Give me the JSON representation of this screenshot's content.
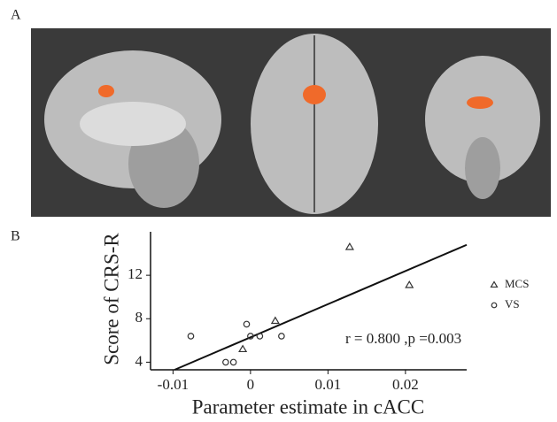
{
  "panel_labels": [
    "A",
    "B"
  ],
  "chart_data": {
    "type": "scatter",
    "xlabel": "Parameter estimate in cACC",
    "ylabel": "Score of CRS-R",
    "annotation": "r = 0.800 ,p =0.003",
    "xlim": [
      -0.0129,
      0.0279
    ],
    "ylim": [
      3.3,
      16
    ],
    "xticks": [
      -0.01,
      0,
      0.01,
      0.02
    ],
    "yticks": [
      4,
      8,
      12
    ],
    "series": [
      {
        "name": "MCS",
        "marker": "triangle",
        "color": "#333333",
        "x": [
          0.0128,
          0.0205,
          0.0032,
          -0.001
        ],
        "values": [
          14.6,
          11.1,
          7.8,
          5.2
        ]
      },
      {
        "name": "VS",
        "marker": "circle",
        "color": "#333333",
        "x": [
          -0.0077,
          -0.0005,
          0,
          0.0012,
          0.004,
          -0.0032,
          -0.0022
        ],
        "values": [
          6.4,
          7.5,
          6.4,
          6.4,
          6.4,
          4,
          4
        ]
      }
    ],
    "fit_line": {
      "x": [
        -0.0098,
        0.0279
      ],
      "values": [
        3.3,
        14.8
      ]
    }
  }
}
